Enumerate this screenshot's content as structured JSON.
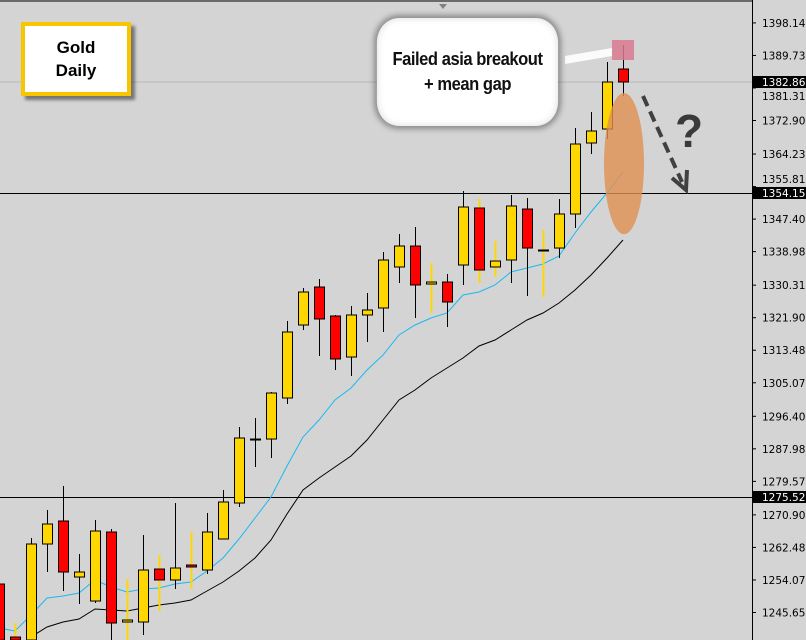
{
  "chart_data": {
    "type": "candlestick",
    "symbol_label": [
      "Gold",
      "Daily"
    ],
    "ylim": [
      1240.0,
      1400.5
    ],
    "y_tick_labels": [
      "1398.145",
      "1389.730",
      "1381.315",
      "1372.900",
      "1364.230",
      "1355.815",
      "1347.400",
      "1338.985",
      "1330.315",
      "1321.900",
      "1313.485",
      "1305.070",
      "1296.400",
      "1287.985",
      "1279.570",
      "1270.900",
      "1262.485",
      "1254.070",
      "1245.655"
    ],
    "horizontal_lines": [
      {
        "price": 1354.152,
        "label": "1354.152"
      },
      {
        "price": 1275.526,
        "label": "1275.526"
      }
    ],
    "current_price": {
      "price": 1382.86,
      "label": "1382.860"
    },
    "colors": {
      "background": "#d4d4d4",
      "bull": "#ffd700",
      "bear": "#ff0000",
      "wick": "#000000",
      "ma_fast": "#1ab8f0",
      "ma_slow": "#000000",
      "current_line": "#b8b8b8",
      "highlight_square": "#d9798f",
      "ellipse": "#e09050",
      "arrow": "#404040"
    },
    "candles": [
      {
        "o": 1253.02,
        "h": 1254.06,
        "l": 1238.54,
        "c": 1238.54
      },
      {
        "o": 1239.31,
        "h": 1242.93,
        "l": 1238.54,
        "c": 1238.54
      },
      {
        "o": 1238.54,
        "h": 1264.92,
        "l": 1238.54,
        "c": 1263.37
      },
      {
        "o": 1263.37,
        "h": 1272.16,
        "l": 1256.12,
        "c": 1268.54
      },
      {
        "o": 1269.32,
        "h": 1278.37,
        "l": 1251.21,
        "c": 1256.12
      },
      {
        "o": 1254.83,
        "h": 1260.78,
        "l": 1247.85,
        "c": 1256.12
      },
      {
        "o": 1248.62,
        "h": 1269.57,
        "l": 1248.11,
        "c": 1266.73
      },
      {
        "o": 1266.47,
        "h": 1267.25,
        "l": 1238.54,
        "c": 1242.93
      },
      {
        "o": 1243.19,
        "h": 1254.31,
        "l": 1238.54,
        "c": 1243.71
      },
      {
        "o": 1243.19,
        "h": 1265.69,
        "l": 1239.83,
        "c": 1256.64
      },
      {
        "o": 1256.9,
        "h": 1260.52,
        "l": 1246.04,
        "c": 1254.06
      },
      {
        "o": 1254.06,
        "h": 1273.97,
        "l": 1251.73,
        "c": 1257.16
      },
      {
        "o": 1257.94,
        "h": 1266.47,
        "l": 1251.73,
        "c": 1257.42
      },
      {
        "o": 1256.64,
        "h": 1271.39,
        "l": 1255.61,
        "c": 1266.47
      },
      {
        "o": 1264.66,
        "h": 1277.33,
        "l": 1264.66,
        "c": 1274.23
      },
      {
        "o": 1273.97,
        "h": 1293.63,
        "l": 1272.94,
        "c": 1290.78
      },
      {
        "o": 1290.52,
        "h": 1295.96,
        "l": 1283.28,
        "c": 1290.52
      },
      {
        "o": 1290.52,
        "h": 1302.68,
        "l": 1285.61,
        "c": 1302.42
      },
      {
        "o": 1301.13,
        "h": 1321.04,
        "l": 1299.58,
        "c": 1318.2
      },
      {
        "o": 1320.01,
        "h": 1329.58,
        "l": 1318.72,
        "c": 1328.54
      },
      {
        "o": 1329.84,
        "h": 1331.91,
        "l": 1311.99,
        "c": 1321.56
      },
      {
        "o": 1322.34,
        "h": 1322.6,
        "l": 1308.37,
        "c": 1311.22
      },
      {
        "o": 1311.73,
        "h": 1324.92,
        "l": 1306.82,
        "c": 1322.6
      },
      {
        "o": 1322.6,
        "h": 1328.29,
        "l": 1315.61,
        "c": 1323.89
      },
      {
        "o": 1324.41,
        "h": 1338.89,
        "l": 1318.2,
        "c": 1336.82
      },
      {
        "o": 1335.01,
        "h": 1343.55,
        "l": 1330.87,
        "c": 1340.44
      },
      {
        "o": 1340.44,
        "h": 1345.36,
        "l": 1321.82,
        "c": 1330.36
      },
      {
        "o": 1330.61,
        "h": 1336.05,
        "l": 1323.11,
        "c": 1331.13
      },
      {
        "o": 1331.13,
        "h": 1333.2,
        "l": 1319.49,
        "c": 1325.96
      },
      {
        "o": 1335.53,
        "h": 1354.67,
        "l": 1330.36,
        "c": 1350.53
      },
      {
        "o": 1350.27,
        "h": 1352.6,
        "l": 1330.87,
        "c": 1334.23
      },
      {
        "o": 1335.01,
        "h": 1341.74,
        "l": 1332.42,
        "c": 1336.56
      },
      {
        "o": 1336.82,
        "h": 1353.63,
        "l": 1330.87,
        "c": 1350.79
      },
      {
        "o": 1350.01,
        "h": 1352.86,
        "l": 1327.51,
        "c": 1339.92
      },
      {
        "o": 1339.41,
        "h": 1344.58,
        "l": 1327.25,
        "c": 1339.41
      },
      {
        "o": 1339.92,
        "h": 1352.6,
        "l": 1337.34,
        "c": 1348.72
      },
      {
        "o": 1348.72,
        "h": 1370.96,
        "l": 1345.1,
        "c": 1366.82
      },
      {
        "o": 1367.08,
        "h": 1375.1,
        "l": 1364.24,
        "c": 1370.19
      },
      {
        "o": 1370.7,
        "h": 1388.03,
        "l": 1368.12,
        "c": 1382.86
      },
      {
        "o": 1386.22,
        "h": 1392.43,
        "l": 1379.24,
        "c": 1382.86
      }
    ],
    "yellow_wick_candles": [
      1,
      8,
      10,
      12,
      27,
      30,
      31,
      34
    ],
    "series": [
      {
        "values": [
          1241.64,
          1240.87,
          1245.0,
          1249.4,
          1249.92,
          1250.69,
          1254.06,
          1252.25,
          1250.95,
          1251.73,
          1251.99,
          1253.02,
          1253.54,
          1256.39,
          1259.75,
          1264.66,
          1270.09,
          1275.53,
          1283.54,
          1291.04,
          1295.44,
          1300.61,
          1303.72,
          1308.37,
          1312.25,
          1317.42,
          1320.01,
          1321.82,
          1323.11,
          1327.77,
          1328.54,
          1330.36,
          1333.72,
          1334.75,
          1335.79,
          1337.86,
          1343.81,
          1349.24,
          1354.15,
          1359.58
        ],
        "color": "#1ab8f0"
      },
      {
        "values": [
          null,
          null,
          1239.31,
          1241.9,
          1243.19,
          1243.97,
          1246.56,
          1246.3,
          1246.04,
          1246.82,
          1247.59,
          1248.11,
          1248.88,
          1251.21,
          1253.54,
          1256.39,
          1259.75,
          1264.4,
          1271.13,
          1277.33,
          1280.44,
          1283.28,
          1286.13,
          1290.27,
          1295.44,
          1300.61,
          1303.2,
          1306.3,
          1308.89,
          1311.48,
          1314.58,
          1316.13,
          1318.72,
          1321.3,
          1323.11,
          1325.7,
          1329.06,
          1332.94,
          1337.34,
          1341.99
        ],
        "color": "#000000"
      }
    ],
    "annotations": {
      "callout_lines": [
        "Failed asia breakout",
        "+ mean gap"
      ],
      "question_mark": "?",
      "highlighted_candle": 39,
      "ellipse_price_range": [
        1343.5,
        1380.0
      ],
      "arrow_direction": "down-right"
    }
  }
}
